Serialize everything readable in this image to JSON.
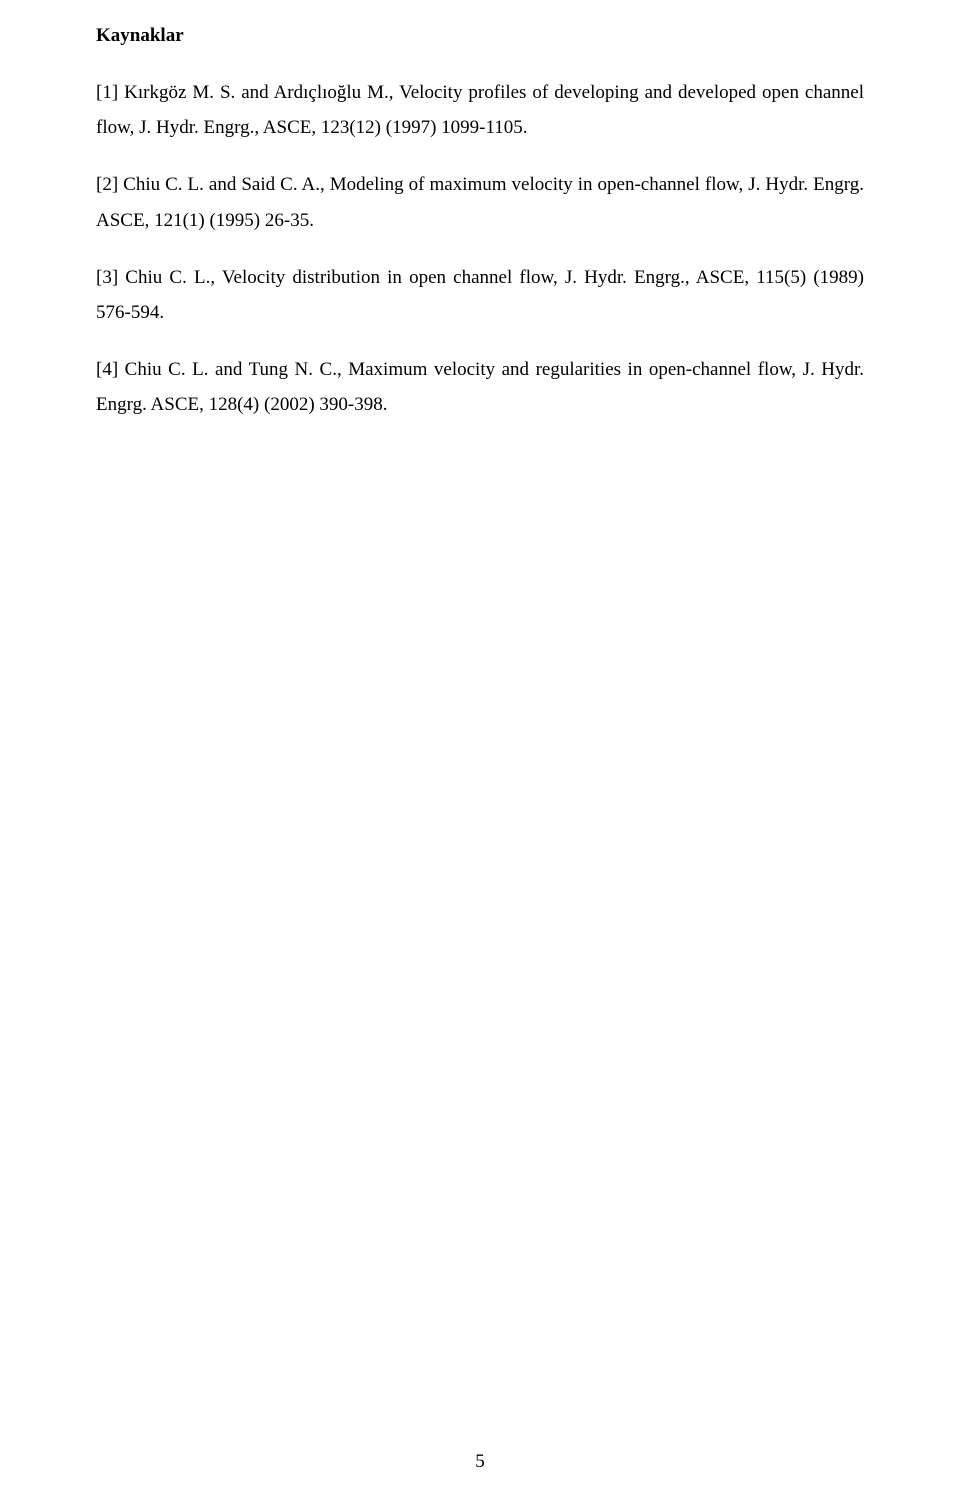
{
  "heading": "Kaynaklar",
  "references": [
    "[1] Kırkgöz M. S. and Ardıçlıoğlu M., Velocity profiles of developing and developed open channel flow, J. Hydr. Engrg., ASCE, 123(12) (1997) 1099-1105.",
    "[2] Chiu C. L. and Said C. A., Modeling of maximum velocity in open-channel flow, J. Hydr. Engrg. ASCE, 121(1) (1995) 26-35.",
    "[3] Chiu C. L., Velocity distribution in open channel flow, J. Hydr. Engrg., ASCE, 115(5) (1989) 576-594.",
    "[4] Chiu C. L. and Tung N. C., Maximum velocity and regularities in open-channel flow, J. Hydr. Engrg. ASCE, 128(4) (2002) 390-398."
  ],
  "page_number": "5"
}
